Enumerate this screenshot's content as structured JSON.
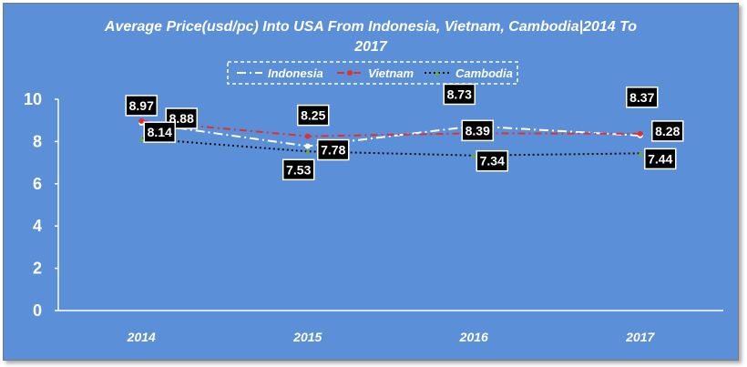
{
  "chart_data": {
    "type": "line",
    "title_lines": [
      "Average Price(usd/pc) Into USA From Indonesia, Vietnam, Cambodia|2014 To",
      "2017"
    ],
    "categories": [
      "2014",
      "2015",
      "2016",
      "2017"
    ],
    "ylim": [
      0,
      10
    ],
    "yticks": [
      "0",
      "2",
      "4",
      "6",
      "8",
      "10"
    ],
    "xlabel": "",
    "ylabel": "",
    "grid": false,
    "legend_position": "top",
    "series": [
      {
        "name": "Indonesia",
        "values": [
          8.88,
          7.78,
          8.73,
          8.28
        ],
        "color": "#ffffff",
        "dash": "10 4 2 4",
        "labels": [
          "8.88",
          "7.78",
          "8.73",
          "8.28"
        ]
      },
      {
        "name": "Vietnam",
        "values": [
          8.97,
          8.25,
          8.39,
          8.37
        ],
        "color": "#e03030",
        "dash": "8 4 2 4",
        "labels": [
          "8.97",
          "8.25",
          "8.39",
          "8.37"
        ]
      },
      {
        "name": "Cambodia",
        "values": [
          8.14,
          7.53,
          7.34,
          7.44
        ],
        "color": "#111111",
        "dash": "2 3",
        "labels": [
          "8.14",
          "7.53",
          "7.34",
          "7.44"
        ]
      }
    ]
  }
}
